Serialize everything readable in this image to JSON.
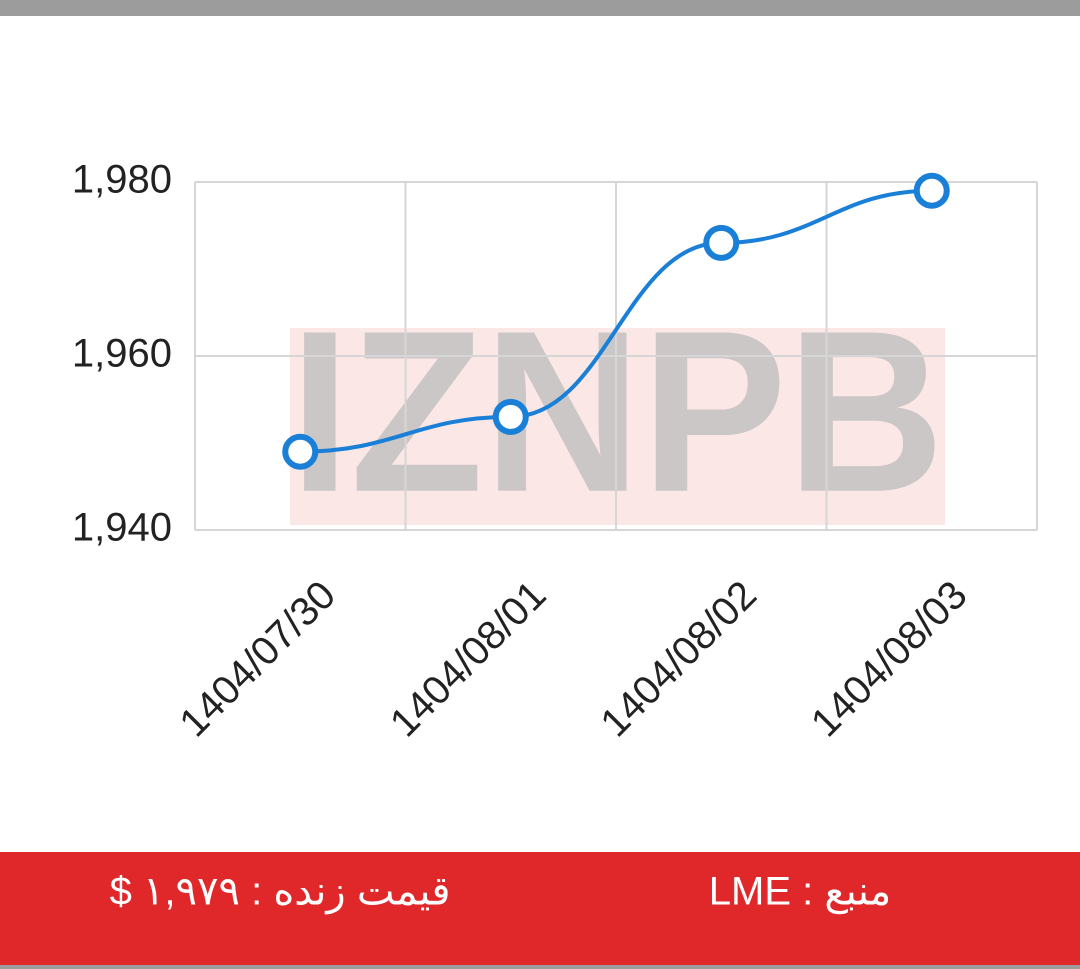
{
  "chart_data": {
    "type": "line",
    "categories": [
      "1404/07/30",
      "1404/08/01",
      "1404/08/02",
      "1404/08/03"
    ],
    "values": [
      1949,
      1953,
      1973,
      1979
    ],
    "color": "#1a7fd6",
    "ylim": [
      1940,
      1980
    ],
    "yticks": [
      {
        "value": 1940,
        "label": "1,940"
      },
      {
        "value": 1960,
        "label": "1,960"
      },
      {
        "value": 1980,
        "label": "1,980"
      }
    ],
    "grid": true,
    "watermark": "IZNPB"
  },
  "footer": {
    "price": "قیمت زنده : ۱,۹۷۹ $",
    "source": "منبع : LME"
  }
}
